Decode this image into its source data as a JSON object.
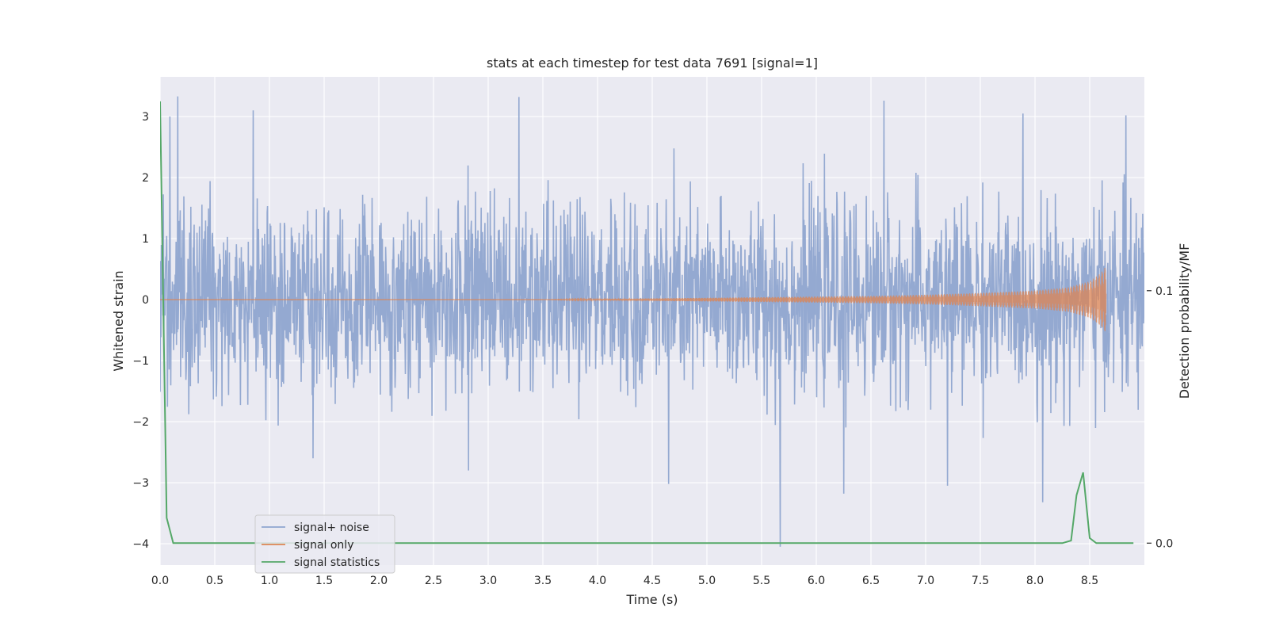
{
  "chart_data": {
    "type": "line",
    "title": "stats at each timestep for test data 7691 [signal=1]",
    "xlabel": "Time (s)",
    "ylabel": "Whitened strain",
    "ylabel_right": "Detection probability/MF",
    "xlim": [
      0,
      9.0
    ],
    "ylim": [
      -4.35,
      3.65
    ],
    "ylim_right": [
      -0.0087,
      0.1847
    ],
    "grid": true,
    "legend_position": "lower-left",
    "x_ticks": [
      "0.0",
      "0.5",
      "1.0",
      "1.5",
      "2.0",
      "2.5",
      "3.0",
      "3.5",
      "4.0",
      "4.5",
      "5.0",
      "5.5",
      "6.0",
      "6.5",
      "7.0",
      "7.5",
      "8.0",
      "8.5"
    ],
    "y_ticks": [
      "3",
      "2",
      "1",
      "0",
      "−1",
      "−2",
      "−3",
      "−4"
    ],
    "y_ticks_right": [
      "0.1",
      "0.0"
    ],
    "colors": {
      "background": "#eaeaf2",
      "grid": "#ffffff",
      "noise": "#8fa5cf",
      "signal": "#dd8452",
      "statistics": "#55a868"
    },
    "series": [
      {
        "name": "signal+ noise",
        "kind": "noise",
        "description_values": {
          "amplitude_std": 0.75,
          "min": -4.1,
          "max": 3.35,
          "duration_s": 9.0
        },
        "peaks_x": [
          0.09,
          0.16,
          0.85,
          1.4,
          2.82,
          3.28,
          4.65,
          5.67,
          6.25,
          6.62,
          7.2,
          8.07,
          8.83
        ],
        "peaks_y": [
          3.0,
          3.33,
          3.1,
          -2.6,
          -2.8,
          3.32,
          -3.02,
          -4.05,
          -3.18,
          3.26,
          -3.05,
          -3.32,
          3.02
        ]
      },
      {
        "name": "signal only",
        "kind": "chirp",
        "x_start": 3.5,
        "x_end": 8.65,
        "envelope_x": [
          3.5,
          4.5,
          5.5,
          6.5,
          7.0,
          7.5,
          8.0,
          8.3,
          8.5,
          8.6,
          8.65
        ],
        "envelope_y": [
          0.0,
          0.02,
          0.04,
          0.06,
          0.08,
          0.11,
          0.15,
          0.2,
          0.3,
          0.43,
          0.55
        ]
      },
      {
        "name": "signal statistics",
        "kind": "probability",
        "axis": "right",
        "x": [
          0.0,
          0.06,
          0.12,
          0.2,
          1.0,
          2.0,
          3.0,
          4.0,
          5.0,
          6.0,
          7.0,
          8.0,
          8.25,
          8.33,
          8.38,
          8.44,
          8.5,
          8.56,
          8.62,
          8.7,
          8.8,
          8.9
        ],
        "y": [
          0.175,
          0.01,
          0.0,
          0.0,
          0.0,
          0.0,
          0.0,
          0.0,
          0.0,
          0.0,
          0.0,
          0.0,
          0.0,
          0.001,
          0.019,
          0.028,
          0.002,
          0.0,
          0.0,
          0.0,
          0.0,
          0.0
        ]
      }
    ]
  }
}
